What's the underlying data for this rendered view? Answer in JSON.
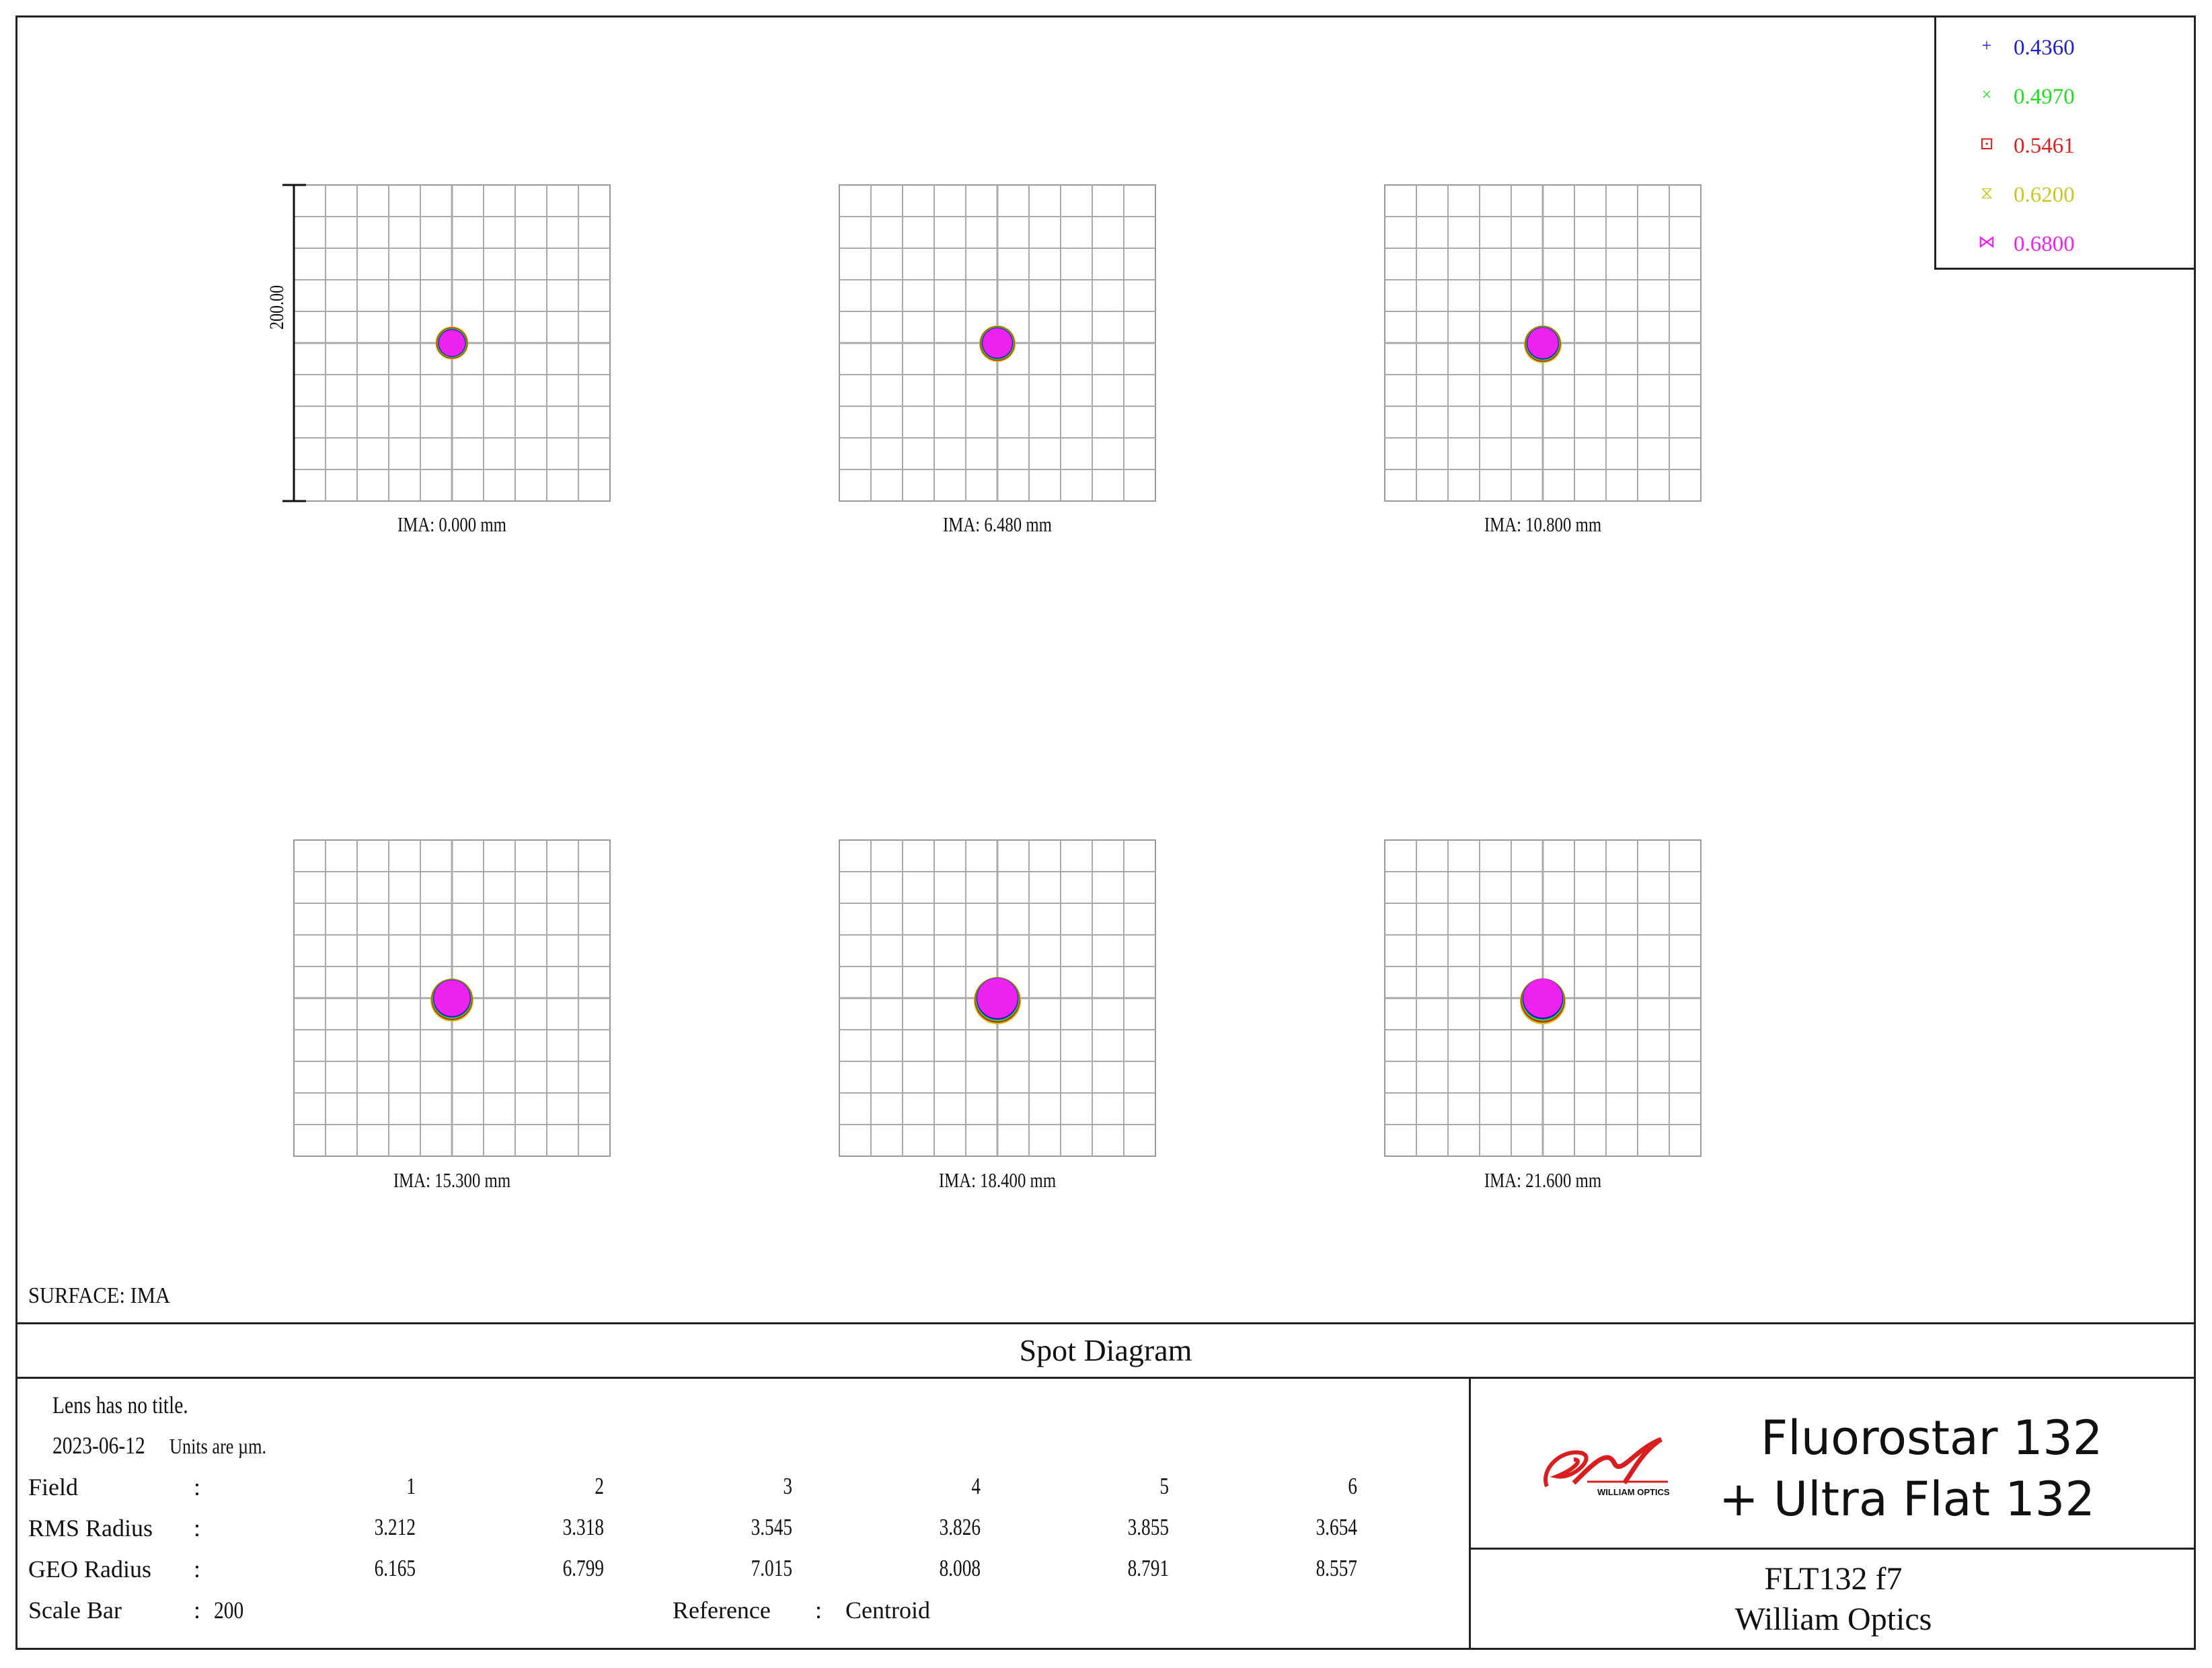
{
  "legend": {
    "items": [
      {
        "label": "0.4360",
        "color": "#2020c8",
        "marker": "+"
      },
      {
        "label": "0.4970",
        "color": "#22dd22",
        "marker": "×"
      },
      {
        "label": "0.5461",
        "color": "#dd2020",
        "marker": "⊡"
      },
      {
        "label": "0.6200",
        "color": "#c8c820",
        "marker": "⧖"
      },
      {
        "label": "0.6800",
        "color": "#ee22ee",
        "marker": "⋈"
      }
    ]
  },
  "chart_data": {
    "type": "scatter",
    "title": "Spot Diagram",
    "scale_bar_label": "200.00",
    "grid_divisions": 10,
    "fields": [
      {
        "label": "IMA:  0.000 mm",
        "rms_radius": 3.212,
        "geo_radius": 6.165
      },
      {
        "label": "IMA:  6.480 mm",
        "rms_radius": 3.318,
        "geo_radius": 6.799
      },
      {
        "label": "IMA:  10.800 mm",
        "rms_radius": 3.545,
        "geo_radius": 7.015
      },
      {
        "label": "IMA:  15.300 mm",
        "rms_radius": 3.826,
        "geo_radius": 8.008
      },
      {
        "label": "IMA:  18.400 mm",
        "rms_radius": 3.855,
        "geo_radius": 8.791
      },
      {
        "label": "IMA:  21.600 mm",
        "rms_radius": 3.654,
        "geo_radius": 8.557
      }
    ]
  },
  "surface_label": "SURFACE: IMA",
  "title": "Spot Diagram",
  "info": {
    "lens_title": "Lens has no title.",
    "date": "2023-06-12",
    "units": "Units are µm.",
    "field_label": "Field",
    "rms_label": "RMS Radius",
    "geo_label": "GEO Radius",
    "scale_bar_label": "Scale Bar",
    "scale_bar_value": "200",
    "reference_label": "Reference",
    "reference_value": "Centroid",
    "colon": ":",
    "field_numbers": [
      "1",
      "2",
      "3",
      "4",
      "5",
      "6"
    ],
    "rms_values": [
      "3.212",
      "3.318",
      "3.545",
      "3.826",
      "3.855",
      "3.654"
    ],
    "geo_values": [
      "6.165",
      "6.799",
      "7.015",
      "8.008",
      "8.791",
      "8.557"
    ]
  },
  "brand": {
    "logo_text": "WILLIAM OPTICS",
    "product_line1": "Fluorostar 132",
    "product_line2": "+  Ultra Flat 132",
    "design_name": "FLT132 f7",
    "company": "William Optics",
    "logo_color": "#d81e1e"
  }
}
